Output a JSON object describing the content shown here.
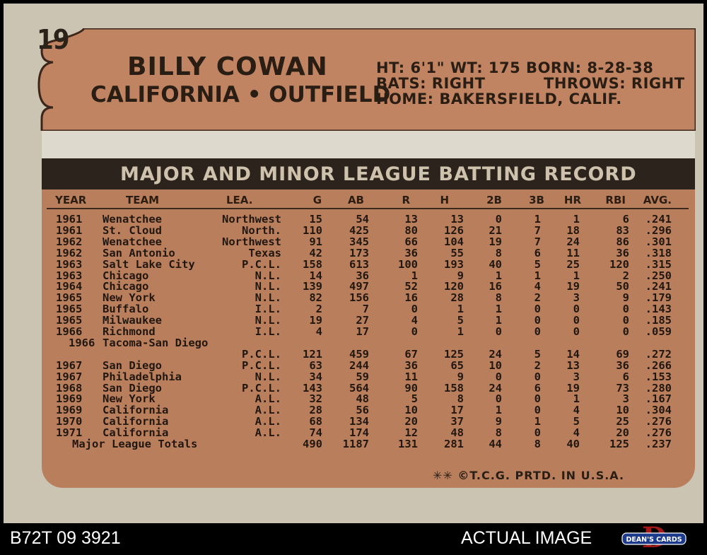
{
  "card": {
    "number": "19",
    "player_name": "BILLY COWAN",
    "team_position": "CALIFORNIA • OUTFIELD",
    "info_line1": "HT: 6'1\"   WT: 175   BORN: 8-28-38",
    "info_line2_left": "BATS: RIGHT",
    "info_line2_right": "THROWS: RIGHT",
    "info_line3": "HOME: BAKERSFIELD, CALIF.",
    "title": "MAJOR AND MINOR LEAGUE BATTING RECORD",
    "columns": [
      "YEAR",
      "TEAM",
      "LEA.",
      "G",
      "AB",
      "R",
      "H",
      "2B",
      "3B",
      "HR",
      "RBI",
      "AVG."
    ],
    "rows": [
      [
        "1961",
        "Wenatchee",
        "Northwest",
        "15",
        "54",
        "13",
        "13",
        "0",
        "1",
        "1",
        "6",
        ".241"
      ],
      [
        "1961",
        "St. Cloud",
        "North.",
        "110",
        "425",
        "80",
        "126",
        "21",
        "7",
        "18",
        "83",
        ".296"
      ],
      [
        "1962",
        "Wenatchee",
        "Northwest",
        "91",
        "345",
        "66",
        "104",
        "19",
        "7",
        "24",
        "86",
        ".301"
      ],
      [
        "1962",
        "San Antonio",
        "Texas",
        "42",
        "173",
        "36",
        "55",
        "8",
        "6",
        "11",
        "36",
        ".318"
      ],
      [
        "1963",
        "Salt Lake City",
        "P.C.L.",
        "158",
        "613",
        "100",
        "193",
        "40",
        "5",
        "25",
        "120",
        ".315"
      ],
      [
        "1963",
        "Chicago",
        "N.L.",
        "14",
        "36",
        "1",
        "9",
        "1",
        "1",
        "1",
        "2",
        ".250"
      ],
      [
        "1964",
        "Chicago",
        "N.L.",
        "139",
        "497",
        "52",
        "120",
        "16",
        "4",
        "19",
        "50",
        ".241"
      ],
      [
        "1965",
        "New York",
        "N.L.",
        "82",
        "156",
        "16",
        "28",
        "8",
        "2",
        "3",
        "9",
        ".179"
      ],
      [
        "1965",
        "Buffalo",
        "I.L.",
        "2",
        "7",
        "0",
        "1",
        "1",
        "0",
        "0",
        "0",
        ".143"
      ],
      [
        "1965",
        "Milwaukee",
        "N.L.",
        "19",
        "27",
        "4",
        "5",
        "1",
        "0",
        "0",
        "0",
        ".185"
      ],
      [
        "1966",
        "Richmond",
        "I.L.",
        "4",
        "17",
        "0",
        "1",
        "0",
        "0",
        "0",
        "0",
        ".059"
      ],
      [
        "1966",
        "Tacoma-San Diego",
        "",
        "",
        "",
        "",
        "",
        "",
        "",
        "",
        "",
        ""
      ],
      [
        "",
        "",
        "P.C.L.",
        "121",
        "459",
        "67",
        "125",
        "24",
        "5",
        "14",
        "69",
        ".272"
      ],
      [
        "1967",
        "San Diego",
        "P.C.L.",
        "63",
        "244",
        "36",
        "65",
        "10",
        "2",
        "13",
        "36",
        ".266"
      ],
      [
        "1967",
        "Philadelphia",
        "N.L.",
        "34",
        "59",
        "11",
        "9",
        "0",
        "0",
        "3",
        "6",
        ".153"
      ],
      [
        "1968",
        "San Diego",
        "P.C.L.",
        "143",
        "564",
        "90",
        "158",
        "24",
        "6",
        "19",
        "73",
        ".280"
      ],
      [
        "1969",
        "New York",
        "A.L.",
        "32",
        "48",
        "5",
        "8",
        "0",
        "0",
        "1",
        "3",
        ".167"
      ],
      [
        "1969",
        "California",
        "A.L.",
        "28",
        "56",
        "10",
        "17",
        "1",
        "0",
        "4",
        "10",
        ".304"
      ],
      [
        "1970",
        "California",
        "A.L.",
        "68",
        "134",
        "20",
        "37",
        "9",
        "1",
        "5",
        "25",
        ".276"
      ],
      [
        "1971",
        "California",
        "A.L.",
        "74",
        "174",
        "12",
        "48",
        "8",
        "0",
        "4",
        "20",
        ".276"
      ],
      [
        "Major League Totals",
        "",
        "",
        "490",
        "1187",
        "131",
        "281",
        "44",
        "8",
        "40",
        "125",
        ".237"
      ]
    ],
    "copyright": "✳✳ ©T.C.G. PRTD. IN U.S.A."
  },
  "footer": {
    "sku": "B72T 09 3921",
    "label": "ACTUAL IMAGE",
    "logo_text": "DEAN'S CARDS",
    "logo_letter": "D"
  },
  "colors": {
    "card_stock": "#cbc4b2",
    "orange_panel": "#b97f5d",
    "dark_band": "#2c231d"
  }
}
